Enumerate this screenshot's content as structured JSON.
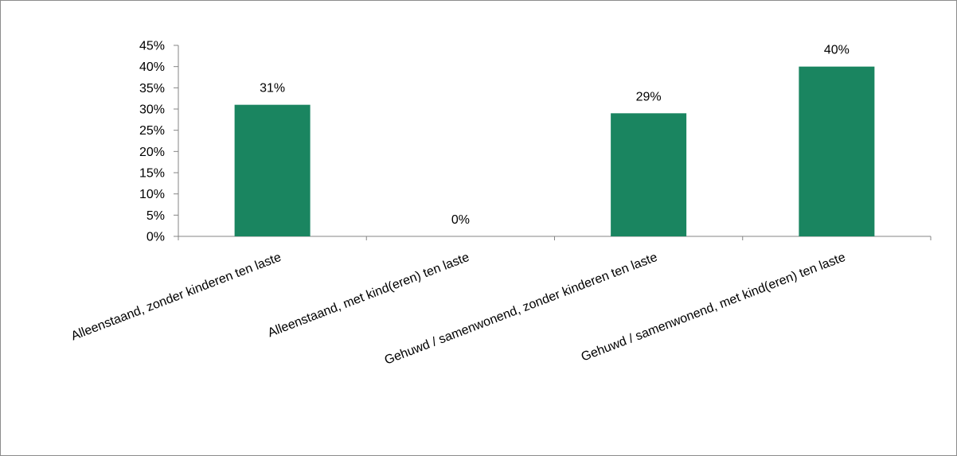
{
  "chart_data": {
    "type": "bar",
    "categories": [
      "Alleenstaand, zonder kinderen ten laste",
      "Alleenstaand, met kind(eren) ten laste",
      "Gehuwd / samenwonend, zonder kinderen ten laste",
      "Gehuwd / samenwonend, met kind(eren) ten laste"
    ],
    "values": [
      31,
      0,
      29,
      40
    ],
    "data_labels": [
      "31%",
      "0%",
      "29%",
      "40%"
    ],
    "title": "",
    "xlabel": "",
    "ylabel": "",
    "ylim": [
      0,
      45
    ],
    "yticks": [
      0,
      5,
      10,
      15,
      20,
      25,
      30,
      35,
      40,
      45
    ],
    "ytick_labels": [
      "0%",
      "5%",
      "10%",
      "15%",
      "20%",
      "25%",
      "30%",
      "35%",
      "40%",
      "45%"
    ],
    "bar_color": "#1a8560",
    "grid": false,
    "legend": "none"
  }
}
